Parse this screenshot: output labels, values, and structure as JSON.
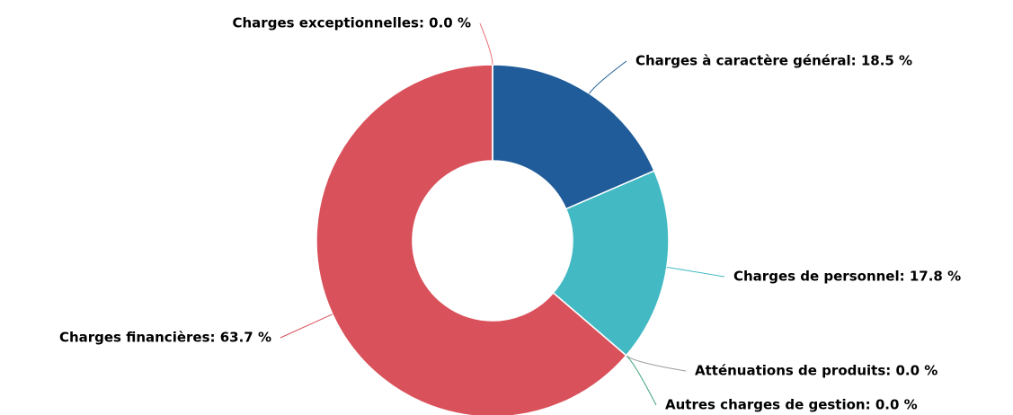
{
  "chart_data": {
    "type": "pie",
    "values": [
      18.5,
      17.8,
      0.0,
      0.0,
      63.7,
      0.0
    ],
    "value_labels": [
      "Charges à caractère général: 18.5 %",
      "Charges de personnel: 17.8 %",
      "Atténuations de produits: 0.0 %",
      "Autres charges de gestion: 0.0 %",
      "Charges financières: 63.7 %",
      "Charges exceptionnelles: 0.0 %"
    ],
    "colors": [
      "#1f5c99",
      "#42b9c3",
      "#999999",
      "#3fa37a",
      "#d9515a",
      "#e8757c"
    ]
  }
}
